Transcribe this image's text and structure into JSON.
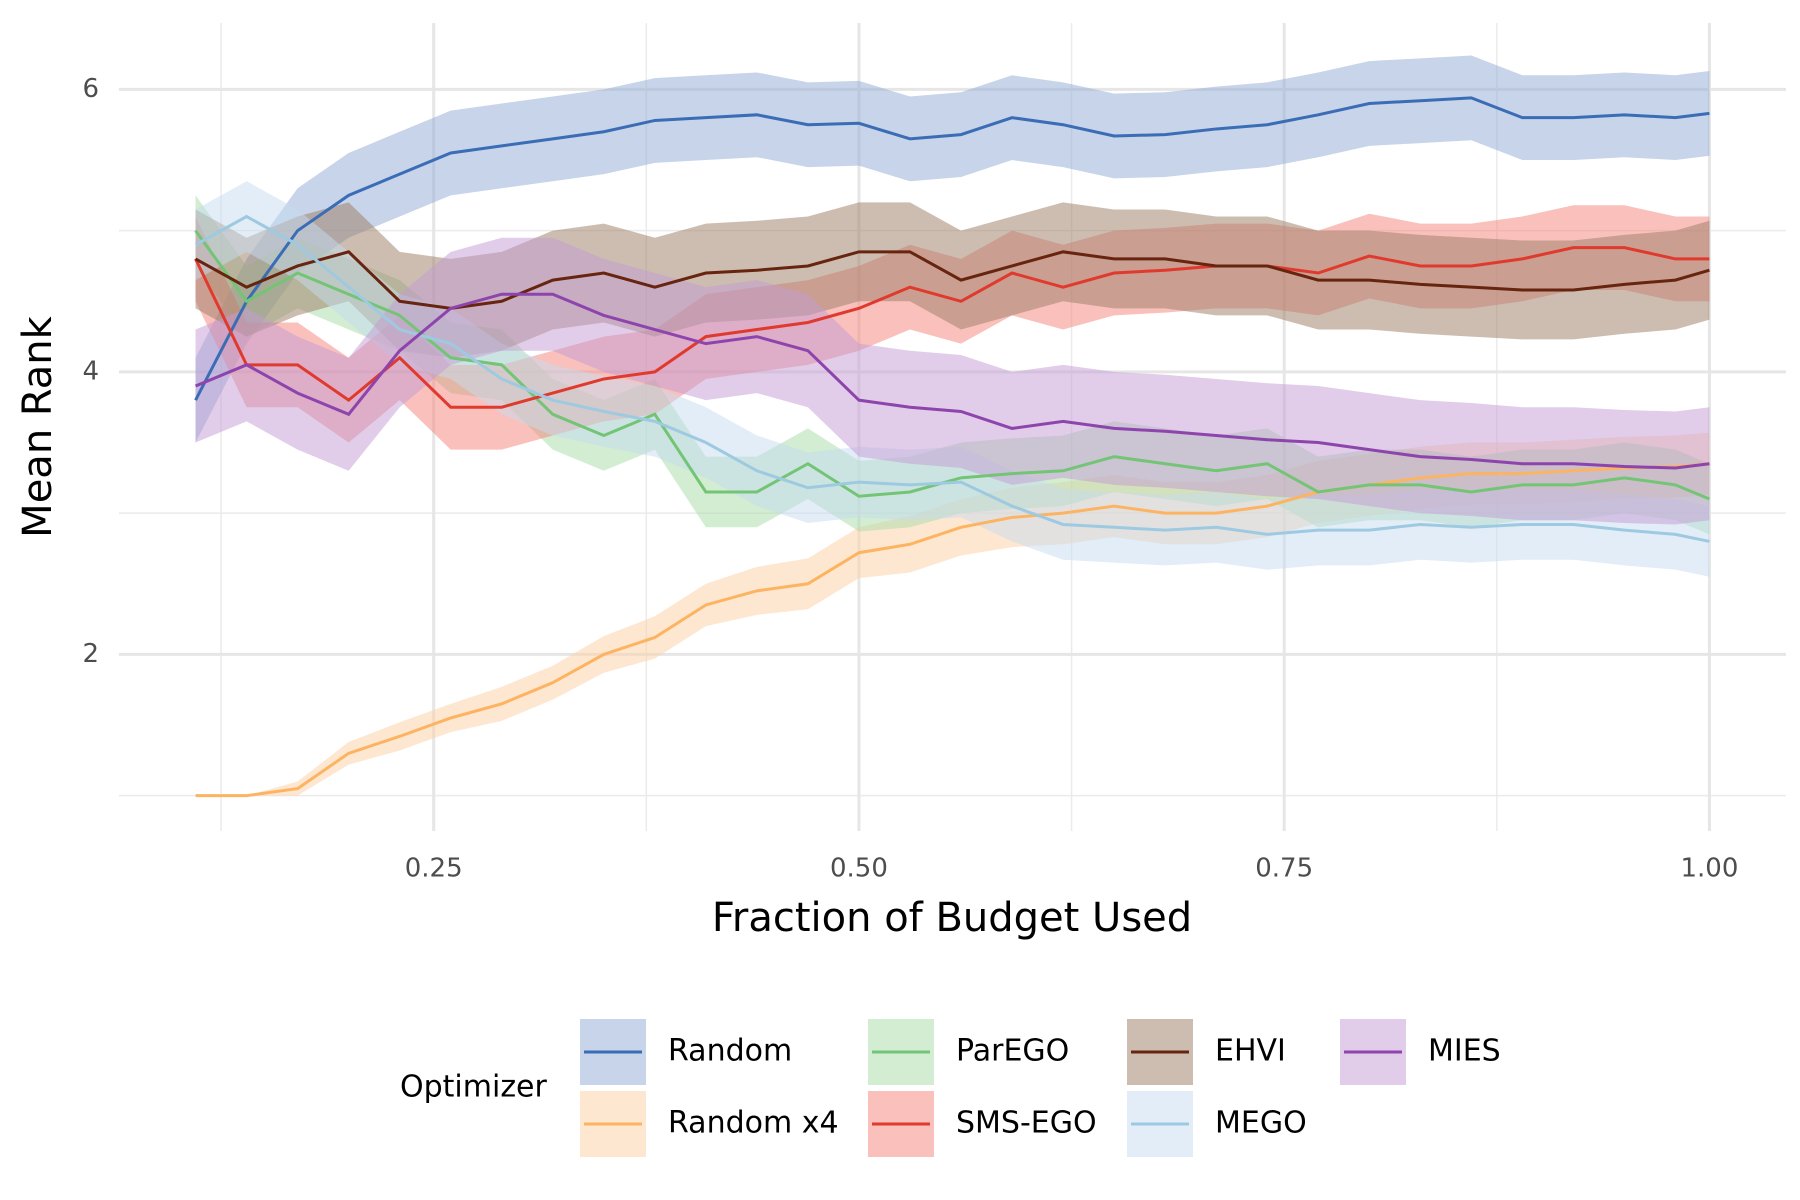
{
  "chart_data": {
    "type": "line",
    "xlabel": "Fraction of Budget Used",
    "ylabel": "Mean Rank",
    "legend_title": "Optimizer",
    "legend_position": "bottom",
    "grid": true,
    "xlim": [
      0.065,
      1.045
    ],
    "ylim": [
      0.75,
      6.47
    ],
    "xticks": [
      {
        "value": 0.25,
        "label": "0.25"
      },
      {
        "value": 0.5,
        "label": "0.50"
      },
      {
        "value": 0.75,
        "label": "0.75"
      },
      {
        "value": 1.0,
        "label": "1.00"
      }
    ],
    "yticks": [
      2,
      4,
      6
    ],
    "x_minor_ticks": [
      0.125,
      0.375,
      0.625,
      0.875
    ],
    "y_minor_ticks": [
      1,
      3,
      5
    ],
    "x": [
      0.11,
      0.14,
      0.17,
      0.2,
      0.23,
      0.26,
      0.29,
      0.32,
      0.35,
      0.38,
      0.41,
      0.44,
      0.47,
      0.5,
      0.53,
      0.56,
      0.59,
      0.62,
      0.65,
      0.68,
      0.71,
      0.74,
      0.77,
      0.8,
      0.83,
      0.86,
      0.89,
      0.92,
      0.95,
      0.98,
      1.0
    ],
    "series": [
      {
        "name": "Random",
        "color": "#3a6db5",
        "fill": "#8fa9d4",
        "values": [
          3.8,
          4.5,
          5.0,
          5.25,
          5.4,
          5.55,
          5.6,
          5.65,
          5.7,
          5.78,
          5.8,
          5.82,
          5.75,
          5.76,
          5.65,
          5.68,
          5.8,
          5.75,
          5.67,
          5.68,
          5.72,
          5.75,
          5.82,
          5.9,
          5.92,
          5.94,
          5.8,
          5.8,
          5.82,
          5.8,
          5.83
        ],
        "upper": [
          4.1,
          4.8,
          5.3,
          5.55,
          5.7,
          5.85,
          5.9,
          5.95,
          6.0,
          6.08,
          6.1,
          6.12,
          6.05,
          6.06,
          5.95,
          5.98,
          6.1,
          6.05,
          5.97,
          5.98,
          6.02,
          6.05,
          6.12,
          6.2,
          6.22,
          6.24,
          6.1,
          6.1,
          6.12,
          6.1,
          6.13
        ],
        "lower": [
          3.5,
          4.2,
          4.7,
          4.95,
          5.1,
          5.25,
          5.3,
          5.35,
          5.4,
          5.48,
          5.5,
          5.52,
          5.45,
          5.46,
          5.35,
          5.38,
          5.5,
          5.45,
          5.37,
          5.38,
          5.42,
          5.45,
          5.52,
          5.6,
          5.62,
          5.64,
          5.5,
          5.5,
          5.52,
          5.5,
          5.53
        ]
      },
      {
        "name": "Random x4",
        "color": "#fdb462",
        "fill": "#fdd0a2",
        "values": [
          1,
          1,
          1.05,
          1.3,
          1.42,
          1.55,
          1.65,
          1.8,
          2.0,
          2.12,
          2.35,
          2.45,
          2.5,
          2.72,
          2.78,
          2.9,
          2.97,
          3.0,
          3.05,
          3.0,
          3.0,
          3.05,
          3.15,
          3.2,
          3.25,
          3.28,
          3.28,
          3.3,
          3.32,
          3.33,
          3.35
        ],
        "upper": [
          1,
          1,
          1.1,
          1.38,
          1.52,
          1.65,
          1.77,
          1.92,
          2.13,
          2.27,
          2.5,
          2.62,
          2.68,
          2.9,
          2.98,
          3.1,
          3.18,
          3.22,
          3.27,
          3.22,
          3.22,
          3.27,
          3.37,
          3.42,
          3.47,
          3.5,
          3.5,
          3.52,
          3.54,
          3.55,
          3.57
        ],
        "lower": [
          1,
          1,
          1.0,
          1.22,
          1.32,
          1.45,
          1.53,
          1.68,
          1.87,
          1.97,
          2.2,
          2.28,
          2.32,
          2.54,
          2.58,
          2.7,
          2.76,
          2.78,
          2.83,
          2.78,
          2.78,
          2.83,
          2.93,
          2.98,
          3.03,
          3.06,
          3.06,
          3.08,
          3.1,
          3.11,
          3.13
        ]
      },
      {
        "name": "ParEGO",
        "color": "#74c476",
        "fill": "#a8dba8",
        "values": [
          5.0,
          4.5,
          4.7,
          4.55,
          4.4,
          4.1,
          4.05,
          3.7,
          3.55,
          3.7,
          3.15,
          3.15,
          3.35,
          3.12,
          3.15,
          3.25,
          3.28,
          3.3,
          3.4,
          3.35,
          3.3,
          3.35,
          3.15,
          3.2,
          3.2,
          3.15,
          3.2,
          3.2,
          3.25,
          3.2,
          3.1
        ],
        "upper": [
          5.25,
          4.75,
          4.95,
          4.8,
          4.65,
          4.35,
          4.3,
          3.95,
          3.8,
          3.95,
          3.4,
          3.4,
          3.6,
          3.37,
          3.4,
          3.5,
          3.53,
          3.55,
          3.65,
          3.6,
          3.55,
          3.6,
          3.4,
          3.45,
          3.45,
          3.4,
          3.45,
          3.45,
          3.5,
          3.45,
          3.35
        ],
        "lower": [
          4.75,
          4.25,
          4.45,
          4.3,
          4.15,
          3.85,
          3.8,
          3.45,
          3.3,
          3.45,
          2.9,
          2.9,
          3.1,
          2.87,
          2.9,
          3.0,
          3.03,
          3.05,
          3.15,
          3.1,
          3.05,
          3.1,
          2.9,
          2.95,
          2.95,
          2.9,
          2.95,
          2.95,
          3.0,
          2.95,
          2.85
        ]
      },
      {
        "name": "SMS-EGO",
        "color": "#e03a2e",
        "fill": "#f4827a",
        "values": [
          4.8,
          4.05,
          4.05,
          3.8,
          4.1,
          3.75,
          3.75,
          3.85,
          3.95,
          4.0,
          4.25,
          4.3,
          4.35,
          4.45,
          4.6,
          4.5,
          4.7,
          4.6,
          4.7,
          4.72,
          4.75,
          4.75,
          4.7,
          4.82,
          4.75,
          4.75,
          4.8,
          4.88,
          4.88,
          4.8,
          4.8
        ],
        "upper": [
          5.1,
          4.35,
          4.35,
          4.1,
          4.4,
          4.05,
          4.05,
          4.15,
          4.25,
          4.3,
          4.55,
          4.6,
          4.65,
          4.75,
          4.9,
          4.8,
          5.0,
          4.9,
          5.0,
          5.02,
          5.05,
          5.05,
          5.0,
          5.12,
          5.05,
          5.05,
          5.1,
          5.18,
          5.18,
          5.1,
          5.1
        ],
        "lower": [
          4.5,
          3.75,
          3.75,
          3.5,
          3.8,
          3.45,
          3.45,
          3.55,
          3.65,
          3.7,
          3.95,
          4.0,
          4.05,
          4.15,
          4.3,
          4.2,
          4.4,
          4.3,
          4.4,
          4.42,
          4.45,
          4.45,
          4.4,
          4.52,
          4.45,
          4.45,
          4.5,
          4.58,
          4.58,
          4.5,
          4.5
        ]
      },
      {
        "name": "EHVI",
        "color": "#67250f",
        "fill": "#9c7b63",
        "values": [
          4.8,
          4.6,
          4.75,
          4.85,
          4.5,
          4.45,
          4.5,
          4.65,
          4.7,
          4.6,
          4.7,
          4.72,
          4.75,
          4.85,
          4.85,
          4.65,
          4.75,
          4.85,
          4.8,
          4.8,
          4.75,
          4.75,
          4.65,
          4.65,
          4.62,
          4.6,
          4.58,
          4.58,
          4.62,
          4.65,
          4.72
        ],
        "upper": [
          5.15,
          4.95,
          5.1,
          5.2,
          4.85,
          4.8,
          4.85,
          5.0,
          5.05,
          4.95,
          5.05,
          5.07,
          5.1,
          5.2,
          5.2,
          5.0,
          5.1,
          5.2,
          5.15,
          5.15,
          5.1,
          5.1,
          5.0,
          5.0,
          4.97,
          4.95,
          4.93,
          4.93,
          4.97,
          5.0,
          5.07
        ],
        "lower": [
          4.45,
          4.25,
          4.4,
          4.5,
          4.15,
          4.1,
          4.15,
          4.3,
          4.35,
          4.25,
          4.35,
          4.37,
          4.4,
          4.5,
          4.5,
          4.3,
          4.4,
          4.5,
          4.45,
          4.45,
          4.4,
          4.4,
          4.3,
          4.3,
          4.27,
          4.25,
          4.23,
          4.23,
          4.27,
          4.3,
          4.37
        ]
      },
      {
        "name": "MEGO",
        "color": "#9ecae1",
        "fill": "#c6dbef",
        "values": [
          4.9,
          5.1,
          4.9,
          4.6,
          4.3,
          4.2,
          3.95,
          3.8,
          3.72,
          3.65,
          3.5,
          3.3,
          3.18,
          3.22,
          3.2,
          3.22,
          3.05,
          2.92,
          2.9,
          2.88,
          2.9,
          2.85,
          2.88,
          2.88,
          2.92,
          2.9,
          2.92,
          2.92,
          2.88,
          2.85,
          2.8
        ],
        "upper": [
          5.15,
          5.35,
          5.15,
          4.85,
          4.55,
          4.45,
          4.2,
          4.05,
          3.97,
          3.9,
          3.75,
          3.55,
          3.43,
          3.47,
          3.45,
          3.47,
          3.3,
          3.17,
          3.15,
          3.13,
          3.15,
          3.1,
          3.13,
          3.13,
          3.17,
          3.15,
          3.17,
          3.17,
          3.13,
          3.1,
          3.05
        ],
        "lower": [
          4.65,
          4.85,
          4.65,
          4.35,
          4.05,
          3.95,
          3.7,
          3.55,
          3.47,
          3.4,
          3.25,
          3.05,
          2.93,
          2.97,
          2.95,
          2.97,
          2.8,
          2.67,
          2.65,
          2.63,
          2.65,
          2.6,
          2.63,
          2.63,
          2.67,
          2.65,
          2.67,
          2.67,
          2.63,
          2.6,
          2.55
        ]
      },
      {
        "name": "MIES",
        "color": "#8e44ad",
        "fill": "#c39bd3",
        "values": [
          3.9,
          4.05,
          3.85,
          3.7,
          4.15,
          4.45,
          4.55,
          4.55,
          4.4,
          4.3,
          4.2,
          4.25,
          4.15,
          3.8,
          3.75,
          3.72,
          3.6,
          3.65,
          3.6,
          3.58,
          3.55,
          3.52,
          3.5,
          3.45,
          3.4,
          3.38,
          3.35,
          3.35,
          3.33,
          3.32,
          3.35
        ],
        "upper": [
          4.3,
          4.45,
          4.25,
          4.1,
          4.55,
          4.85,
          4.95,
          4.95,
          4.8,
          4.7,
          4.6,
          4.65,
          4.55,
          4.2,
          4.15,
          4.12,
          4.0,
          4.05,
          4.0,
          3.98,
          3.95,
          3.92,
          3.9,
          3.85,
          3.8,
          3.78,
          3.75,
          3.75,
          3.73,
          3.72,
          3.75
        ],
        "lower": [
          3.5,
          3.65,
          3.45,
          3.3,
          3.75,
          4.05,
          4.15,
          4.15,
          4.0,
          3.9,
          3.8,
          3.85,
          3.75,
          3.4,
          3.35,
          3.32,
          3.2,
          3.25,
          3.2,
          3.18,
          3.15,
          3.12,
          3.1,
          3.05,
          3.0,
          2.98,
          2.95,
          2.95,
          2.93,
          2.92,
          2.95
        ]
      }
    ]
  }
}
